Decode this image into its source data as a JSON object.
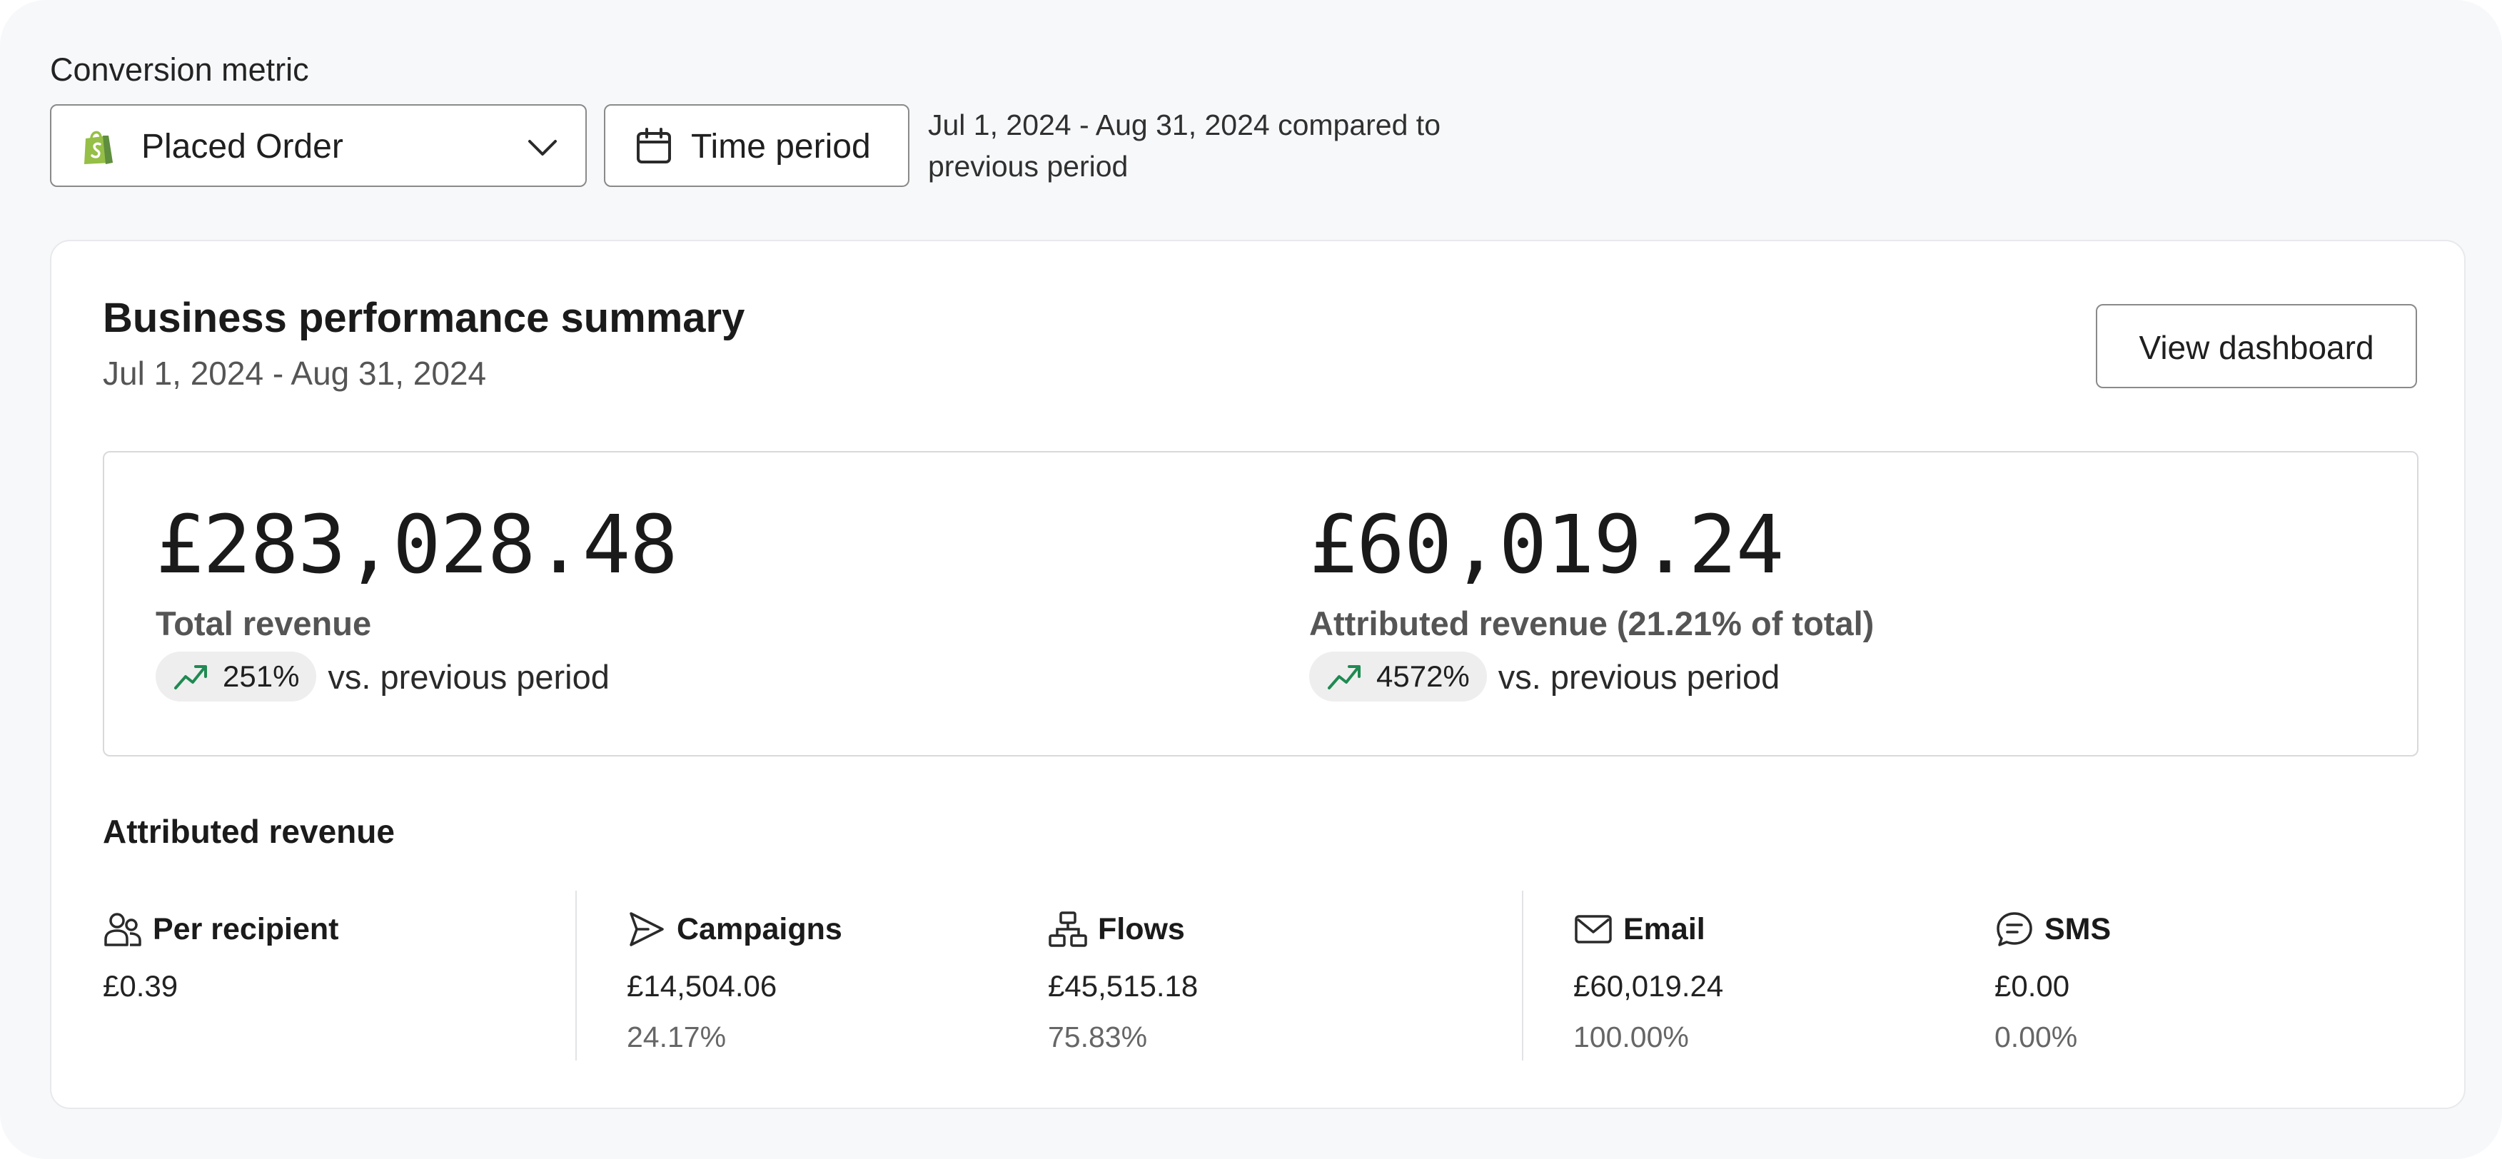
{
  "filters": {
    "metric_label": "Conversion metric",
    "metric_value": "Placed Order",
    "time_button": "Time period",
    "compare_text": "Jul 1, 2024 - Aug 31, 2024 compared to previous period"
  },
  "summary": {
    "title": "Business performance summary",
    "date_range": "Jul 1, 2024 - Aug 31, 2024",
    "view_button": "View dashboard",
    "total": {
      "value": "£283,028.48",
      "label": "Total revenue",
      "change": "251%",
      "vs": "vs. previous period"
    },
    "attributed": {
      "value": "£60,019.24",
      "label": "Attributed revenue (21.21% of total)",
      "change": "4572%",
      "vs": "vs. previous period"
    }
  },
  "attributed_revenue": {
    "title": "Attributed revenue",
    "items": [
      {
        "name": "Per recipient",
        "value": "£0.39",
        "percent": "",
        "icon": "people-icon"
      },
      {
        "name": "Campaigns",
        "value": "£14,504.06",
        "percent": "24.17%",
        "icon": "send-icon"
      },
      {
        "name": "Flows",
        "value": "£45,515.18",
        "percent": "75.83%",
        "icon": "flow-icon"
      },
      {
        "name": "Email",
        "value": "£60,019.24",
        "percent": "100.00%",
        "icon": "mail-icon"
      },
      {
        "name": "SMS",
        "value": "£0.00",
        "percent": "0.00%",
        "icon": "sms-icon"
      }
    ]
  },
  "colors": {
    "trend_up": "#1f8a52",
    "shopify_green": "#95bf47"
  }
}
